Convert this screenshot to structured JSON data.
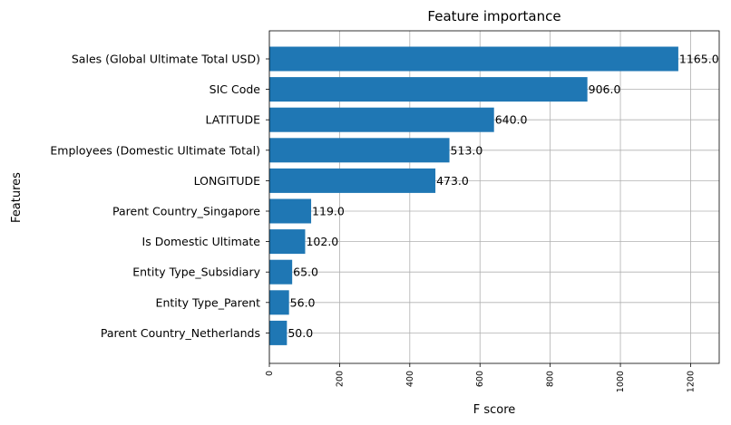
{
  "chart_data": {
    "type": "bar",
    "orientation": "horizontal",
    "title": "Feature importance",
    "xlabel": "F score",
    "ylabel": "Features",
    "categories": [
      "Sales (Global Ultimate Total USD)",
      "SIC Code",
      "LATITUDE",
      "Employees (Domestic Ultimate Total)",
      "LONGITUDE",
      "Parent Country_Singapore",
      "Is Domestic Ultimate",
      "Entity Type_Subsidiary",
      "Entity Type_Parent",
      "Parent Country_Netherlands"
    ],
    "values": [
      1165.0,
      906.0,
      640.0,
      513.0,
      473.0,
      119.0,
      102.0,
      65.0,
      56.0,
      50.0
    ],
    "data_labels": [
      "1165.0",
      "906.0",
      "640.0",
      "513.0",
      "473.0",
      "119.0",
      "102.0",
      "65.0",
      "56.0",
      "50.0"
    ],
    "xticks": [
      0,
      200,
      400,
      600,
      800,
      1000,
      1200
    ],
    "xtick_labels": [
      "0",
      "200",
      "400",
      "600",
      "800",
      "1000",
      "1200"
    ],
    "xlim": [
      0,
      1281.5
    ],
    "grid": true,
    "bar_color": "#1f77b4",
    "grid_color": "#b0b0b0",
    "xtick_label_rotation": "vertical"
  }
}
